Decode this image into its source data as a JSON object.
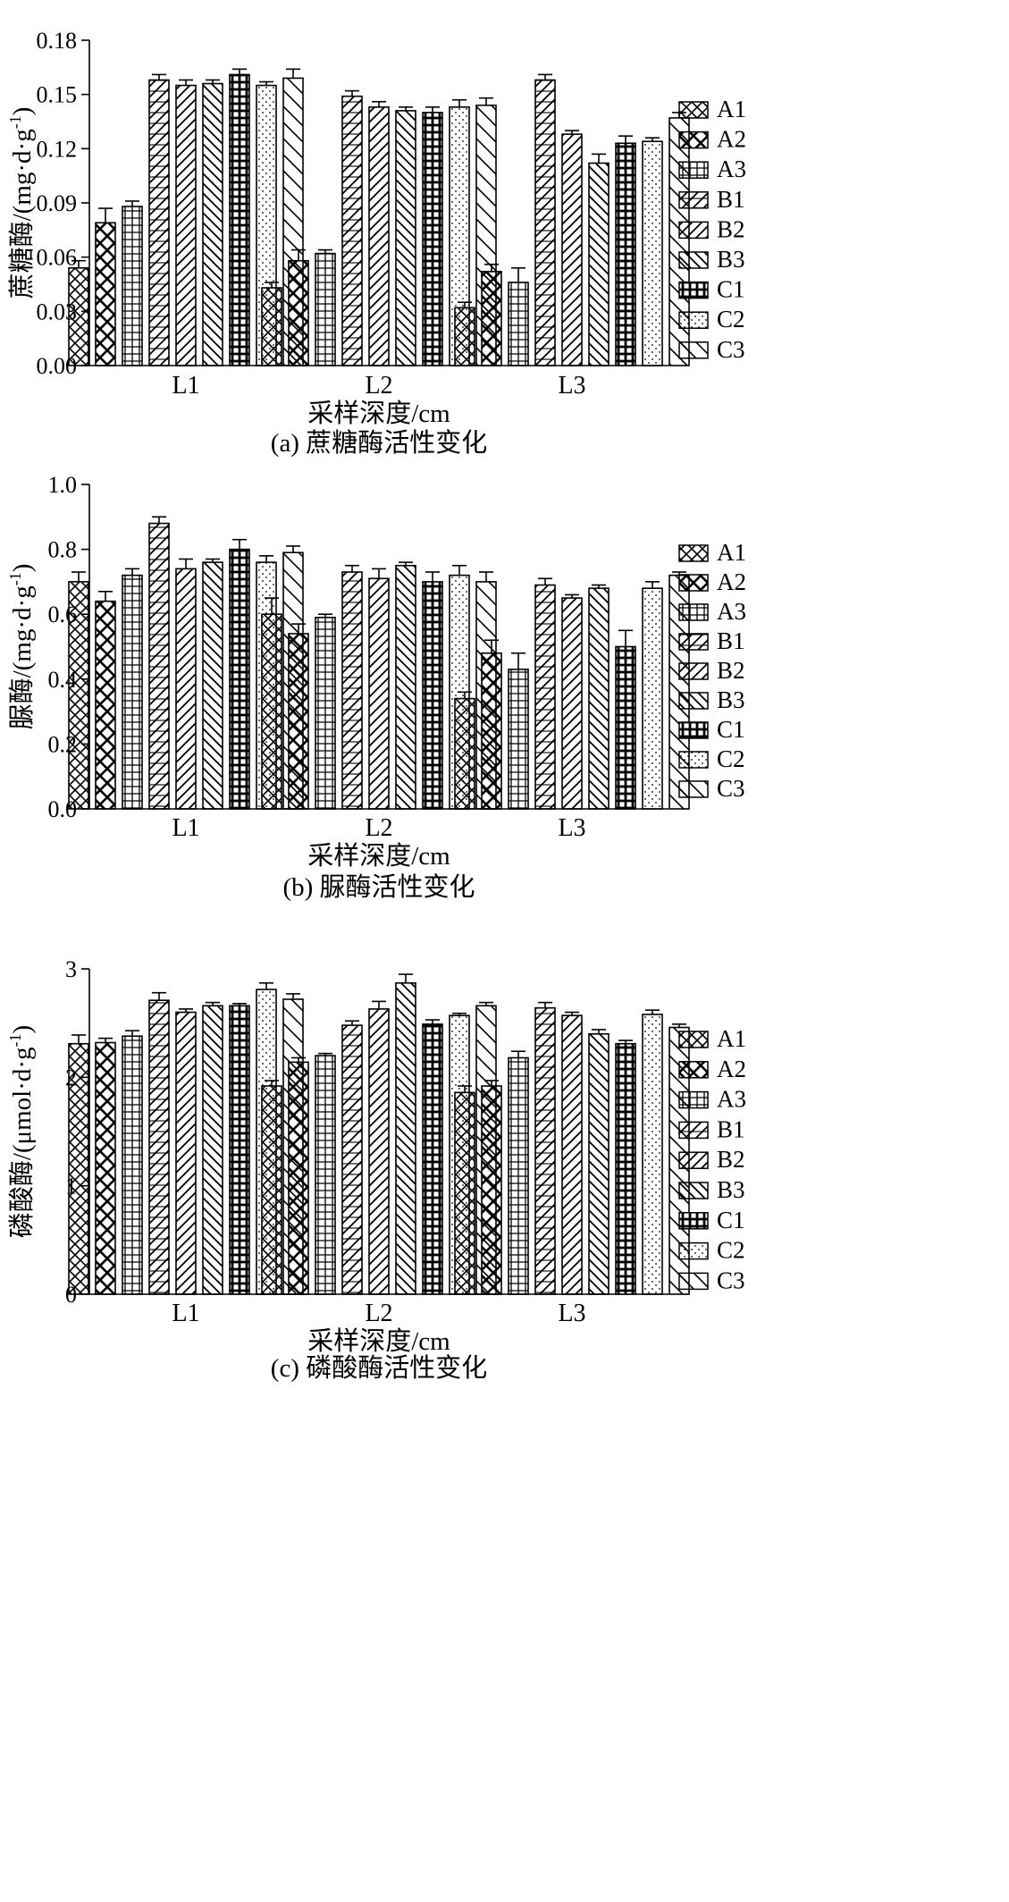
{
  "series_names": [
    "A1",
    "A2",
    "A3",
    "B1",
    "B2",
    "B3",
    "C1",
    "C2",
    "C3"
  ],
  "categories": [
    "L1",
    "L2",
    "L3"
  ],
  "chart_data": [
    {
      "type": "bar",
      "ylabel": "蔗糖酶/(mg·d·g",
      "ylabel_sup": "-1",
      "ylabel_close": ")",
      "xlabel": "采样深度/cm",
      "caption": "(a) 蔗糖酶活性变化",
      "ylim": [
        0,
        0.18
      ],
      "yticks": [
        "0.00",
        "0.03",
        "0.06",
        "0.09",
        "0.12",
        "0.15",
        "0.18"
      ],
      "categories": [
        "L1",
        "L2",
        "L3"
      ],
      "series": [
        {
          "name": "A1",
          "values": [
            0.054,
            0.043,
            0.032
          ],
          "errors": [
            0.004,
            0.003,
            0.003
          ]
        },
        {
          "name": "A2",
          "values": [
            0.079,
            0.058,
            0.052
          ],
          "errors": [
            0.008,
            0.006,
            0.004
          ]
        },
        {
          "name": "A3",
          "values": [
            0.088,
            0.062,
            0.046
          ],
          "errors": [
            0.003,
            0.002,
            0.008
          ]
        },
        {
          "name": "B1",
          "values": [
            0.158,
            0.149,
            0.158
          ],
          "errors": [
            0.003,
            0.003,
            0.003
          ]
        },
        {
          "name": "B2",
          "values": [
            0.155,
            0.143,
            0.128
          ],
          "errors": [
            0.003,
            0.003,
            0.002
          ]
        },
        {
          "name": "B3",
          "values": [
            0.156,
            0.141,
            0.112
          ],
          "errors": [
            0.002,
            0.002,
            0.005
          ]
        },
        {
          "name": "C1",
          "values": [
            0.161,
            0.14,
            0.123
          ],
          "errors": [
            0.003,
            0.003,
            0.004
          ]
        },
        {
          "name": "C2",
          "values": [
            0.155,
            0.143,
            0.124
          ],
          "errors": [
            0.002,
            0.004,
            0.002
          ]
        },
        {
          "name": "C3",
          "values": [
            0.159,
            0.144,
            0.137
          ],
          "errors": [
            0.005,
            0.004,
            0.003
          ]
        }
      ]
    },
    {
      "type": "bar",
      "ylabel": "脲酶/(mg·d·g",
      "ylabel_sup": "-1",
      "ylabel_close": ")",
      "xlabel": "采样深度/cm",
      "caption": "(b) 脲酶活性变化",
      "ylim": [
        0,
        1.0
      ],
      "yticks": [
        "0.0",
        "0.2",
        "0.4",
        "0.6",
        "0.8",
        "1.0"
      ],
      "categories": [
        "L1",
        "L2",
        "L3"
      ],
      "series": [
        {
          "name": "A1",
          "values": [
            0.7,
            0.6,
            0.34
          ],
          "errors": [
            0.03,
            0.05,
            0.02
          ]
        },
        {
          "name": "A2",
          "values": [
            0.64,
            0.54,
            0.48
          ],
          "errors": [
            0.03,
            0.03,
            0.04
          ]
        },
        {
          "name": "A3",
          "values": [
            0.72,
            0.59,
            0.43
          ],
          "errors": [
            0.02,
            0.01,
            0.05
          ]
        },
        {
          "name": "B1",
          "values": [
            0.88,
            0.73,
            0.69
          ],
          "errors": [
            0.02,
            0.02,
            0.02
          ]
        },
        {
          "name": "B2",
          "values": [
            0.74,
            0.71,
            0.65
          ],
          "errors": [
            0.03,
            0.03,
            0.01
          ]
        },
        {
          "name": "B3",
          "values": [
            0.76,
            0.75,
            0.68
          ],
          "errors": [
            0.01,
            0.01,
            0.01
          ]
        },
        {
          "name": "C1",
          "values": [
            0.8,
            0.7,
            0.5
          ],
          "errors": [
            0.03,
            0.03,
            0.05
          ]
        },
        {
          "name": "C2",
          "values": [
            0.76,
            0.72,
            0.68
          ],
          "errors": [
            0.02,
            0.03,
            0.02
          ]
        },
        {
          "name": "C3",
          "values": [
            0.79,
            0.7,
            0.72
          ],
          "errors": [
            0.02,
            0.03,
            0.01
          ]
        }
      ]
    },
    {
      "type": "bar",
      "ylabel": "磷酸酶/(μmol·d·g",
      "ylabel_sup": "-1",
      "ylabel_close": ")",
      "xlabel": "采样深度/cm",
      "caption": "(c) 磷酸酶活性变化",
      "ylim": [
        0,
        3
      ],
      "yticks": [
        "0",
        "1",
        "2",
        "3"
      ],
      "categories": [
        "L1",
        "L2",
        "L3"
      ],
      "series": [
        {
          "name": "A1",
          "values": [
            2.31,
            1.92,
            1.86
          ],
          "errors": [
            0.08,
            0.05,
            0.06
          ]
        },
        {
          "name": "A2",
          "values": [
            2.32,
            2.14,
            1.92
          ],
          "errors": [
            0.04,
            0.04,
            0.05
          ]
        },
        {
          "name": "A3",
          "values": [
            2.38,
            2.2,
            2.18
          ],
          "errors": [
            0.05,
            0.02,
            0.06
          ]
        },
        {
          "name": "B1",
          "values": [
            2.71,
            2.48,
            2.64
          ],
          "errors": [
            0.07,
            0.04,
            0.05
          ]
        },
        {
          "name": "B2",
          "values": [
            2.6,
            2.63,
            2.57
          ],
          "errors": [
            0.03,
            0.07,
            0.03
          ]
        },
        {
          "name": "B3",
          "values": [
            2.66,
            2.87,
            2.4
          ],
          "errors": [
            0.03,
            0.08,
            0.04
          ]
        },
        {
          "name": "C1",
          "values": [
            2.66,
            2.49,
            2.31
          ],
          "errors": [
            0.02,
            0.04,
            0.03
          ]
        },
        {
          "name": "C2",
          "values": [
            2.81,
            2.57,
            2.58
          ],
          "errors": [
            0.06,
            0.02,
            0.04
          ]
        },
        {
          "name": "C3",
          "values": [
            2.72,
            2.66,
            2.46
          ],
          "errors": [
            0.05,
            0.03,
            0.03
          ]
        }
      ]
    }
  ]
}
